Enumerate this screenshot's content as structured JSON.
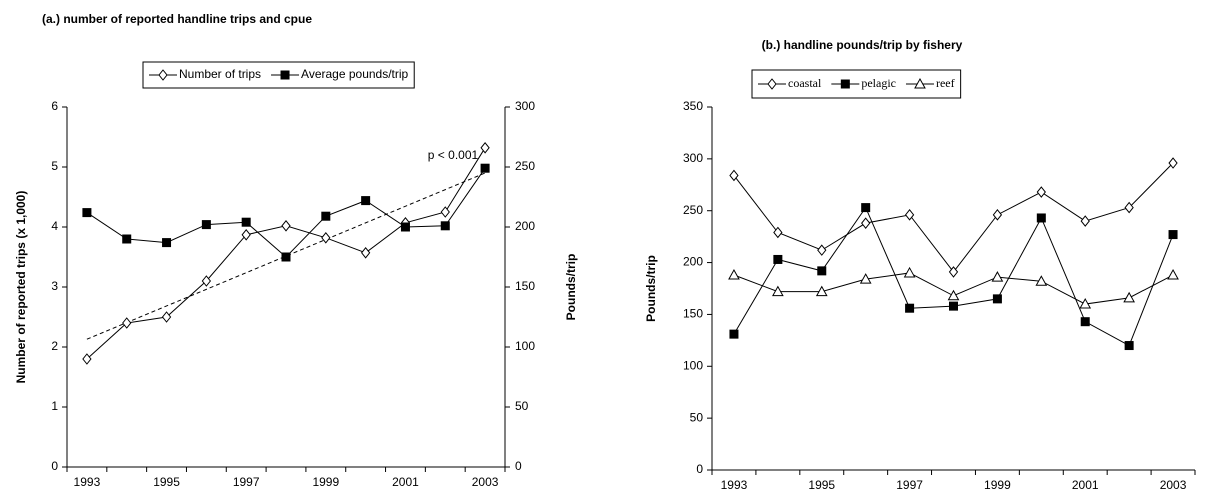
{
  "chart_data": [
    {
      "type": "line",
      "title": "(a.) number of reported handline trips and cpue",
      "categories": [
        "1993",
        null,
        "1995",
        null,
        "1997",
        null,
        "1999",
        null,
        "2001",
        null,
        "2003"
      ],
      "ylabel": "Number of reported trips (x 1,000)",
      "y2label": "Pounds/trip",
      "ylim": [
        0,
        6
      ],
      "yticks": [
        0,
        1,
        2,
        3,
        4,
        5,
        6
      ],
      "y2lim": [
        0,
        300
      ],
      "y2ticks": [
        0,
        50,
        100,
        150,
        200,
        250,
        300
      ],
      "series": [
        {
          "name": "Number of trips",
          "color": "#000000",
          "marker": "diamond",
          "values": [
            1.8,
            2.4,
            2.5,
            3.1,
            3.87,
            4.02,
            3.82,
            3.57,
            4.07,
            4.25,
            5.32
          ]
        },
        {
          "name": "Average pounds/trip",
          "color": "#000000",
          "marker": "square",
          "axis": "y2",
          "values": [
            212,
            190,
            187,
            202,
            204,
            175,
            209,
            222,
            200,
            201,
            249
          ]
        }
      ],
      "trendline": {
        "values": [
          2.13,
          4.9
        ]
      },
      "annotation": "p < 0.001",
      "grid": false
    },
    {
      "type": "line",
      "title": "(b.) handline pounds/trip by fishery",
      "categories": [
        "1993",
        null,
        "1995",
        null,
        "1997",
        null,
        "1999",
        null,
        "2001",
        null,
        "2003"
      ],
      "ylabel": "Pounds/trip",
      "ylim": [
        0,
        350
      ],
      "yticks": [
        0,
        50,
        100,
        150,
        200,
        250,
        300,
        350
      ],
      "series": [
        {
          "name": "coastal",
          "color": "#000000",
          "marker": "diamond",
          "values": [
            284,
            229,
            212,
            238,
            246,
            191,
            246,
            268,
            240,
            253,
            296
          ]
        },
        {
          "name": "pelagic",
          "color": "#000000",
          "marker": "square",
          "values": [
            131,
            203,
            192,
            253,
            156,
            158,
            165,
            243,
            143,
            120,
            227
          ]
        },
        {
          "name": "reef",
          "color": "#000000",
          "marker": "triangle",
          "values": [
            188,
            172,
            172,
            184,
            190,
            168,
            186,
            182,
            160,
            166,
            188
          ]
        }
      ],
      "grid": false
    }
  ]
}
